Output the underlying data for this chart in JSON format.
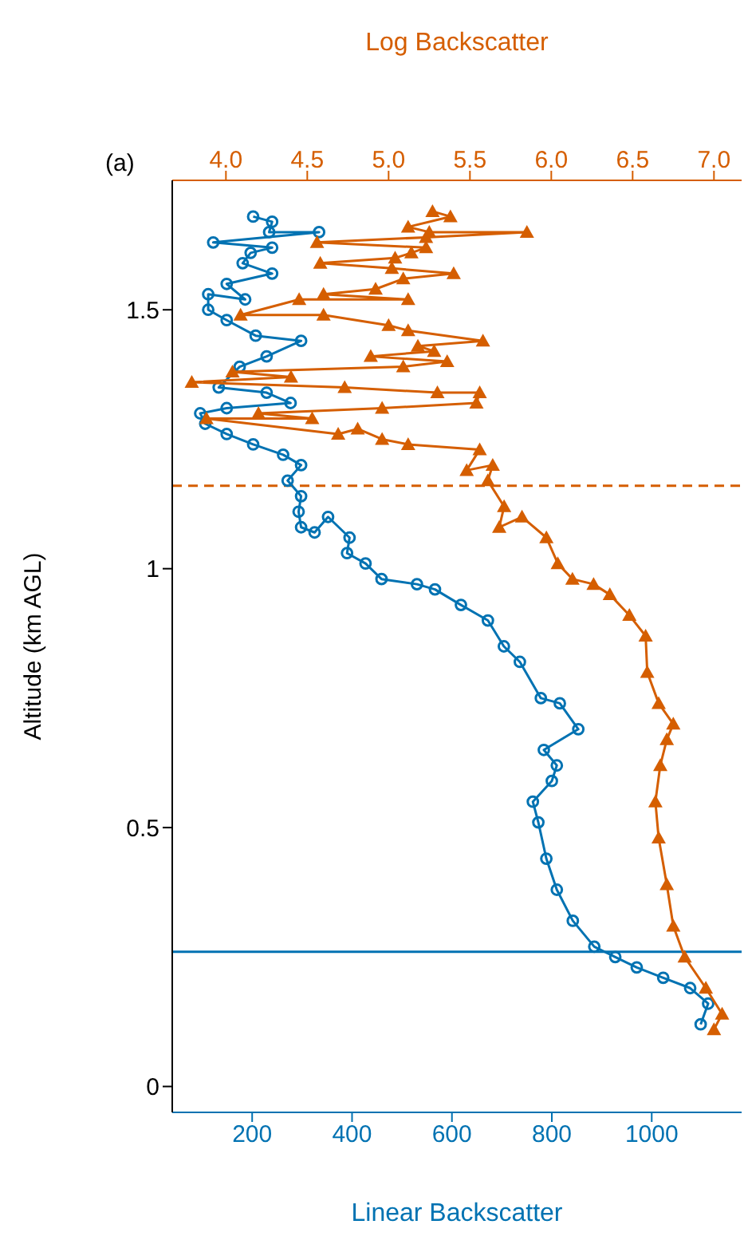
{
  "chart_data": {
    "type": "line",
    "title": "(a)",
    "xlabel": "Linear Backscatter",
    "x2label": "Log Backscatter",
    "ylabel": "Altitude (km AGL)",
    "xlim": [
      40,
      1180
    ],
    "xticks": [
      200,
      400,
      600,
      800,
      1000
    ],
    "x2lim": [
      3.67,
      7.17
    ],
    "x2ticks": [
      {
        "value": 4.0,
        "label": "4.0"
      },
      {
        "value": 4.5,
        "label": "4.5"
      },
      {
        "value": 5.0,
        "label": "5.0"
      },
      {
        "value": 5.5,
        "label": "5.5"
      },
      {
        "value": 6.0,
        "label": "6.0"
      },
      {
        "value": 6.5,
        "label": "6.5"
      },
      {
        "value": 7.0,
        "label": "7.0"
      }
    ],
    "ylim": [
      -0.05,
      1.75
    ],
    "yticks": [
      0,
      0.5,
      1,
      1.5
    ],
    "series": [
      {
        "color": "#0072b2",
        "marker": "circle",
        "x": [
          1098,
          1113,
          1077,
          1023,
          970,
          927,
          885,
          842,
          810,
          789,
          773,
          762,
          800,
          810,
          784,
          853,
          816,
          778,
          736,
          704,
          672,
          618,
          566,
          530,
          459,
          427,
          390,
          395,
          352,
          325,
          298,
          293,
          298,
          271,
          298,
          262,
          202,
          149,
          106,
          96,
          149,
          277,
          229,
          133,
          175,
          229,
          298,
          207,
          149,
          112,
          112,
          186,
          149,
          240,
          181,
          197,
          240,
          122,
          334,
          234,
          240,
          202
        ],
        "values": [
          0.12,
          0.16,
          0.19,
          0.21,
          0.23,
          0.25,
          0.27,
          0.32,
          0.38,
          0.44,
          0.51,
          0.55,
          0.59,
          0.62,
          0.65,
          0.69,
          0.74,
          0.75,
          0.82,
          0.85,
          0.9,
          0.93,
          0.96,
          0.97,
          0.98,
          1.01,
          1.03,
          1.06,
          1.1,
          1.07,
          1.08,
          1.11,
          1.14,
          1.17,
          1.2,
          1.22,
          1.24,
          1.26,
          1.28,
          1.3,
          1.31,
          1.32,
          1.34,
          1.35,
          1.39,
          1.41,
          1.44,
          1.45,
          1.48,
          1.5,
          1.53,
          1.52,
          1.55,
          1.57,
          1.59,
          1.61,
          1.62,
          1.63,
          1.65,
          1.65,
          1.67,
          1.68
        ]
      },
      {
        "color": "#d55e00",
        "marker": "triangle",
        "axis": "x2",
        "x": [
          7.0,
          7.05,
          6.95,
          6.82,
          6.75,
          6.71,
          6.66,
          6.64,
          6.67,
          6.71,
          6.75,
          6.66,
          6.59,
          6.58,
          6.48,
          6.36,
          6.26,
          6.13,
          6.04,
          5.97,
          5.82,
          5.68,
          5.71,
          5.61,
          5.64,
          5.48,
          5.56,
          5.12,
          4.96,
          4.81,
          4.69,
          3.88,
          4.53,
          4.2,
          4.96,
          5.54,
          5.56,
          5.3,
          4.73,
          3.79,
          4.4,
          4.04,
          5.09,
          5.36,
          4.89,
          5.28,
          5.18,
          5.58,
          5.12,
          5.0,
          4.6,
          4.09,
          4.45,
          5.12,
          4.6,
          4.92,
          5.09,
          5.4,
          5.02,
          4.58,
          5.04,
          5.14,
          5.23,
          4.56,
          5.23,
          5.85,
          5.25,
          5.12,
          5.38,
          5.27
        ],
        "values": [
          0.11,
          0.14,
          0.19,
          0.25,
          0.31,
          0.39,
          0.48,
          0.55,
          0.62,
          0.67,
          0.7,
          0.74,
          0.8,
          0.87,
          0.91,
          0.95,
          0.97,
          0.98,
          1.01,
          1.06,
          1.1,
          1.08,
          1.12,
          1.17,
          1.2,
          1.19,
          1.23,
          1.24,
          1.25,
          1.27,
          1.26,
          1.29,
          1.29,
          1.3,
          1.31,
          1.32,
          1.34,
          1.34,
          1.35,
          1.36,
          1.37,
          1.38,
          1.39,
          1.4,
          1.41,
          1.42,
          1.43,
          1.44,
          1.46,
          1.47,
          1.49,
          1.49,
          1.52,
          1.52,
          1.53,
          1.54,
          1.56,
          1.57,
          1.58,
          1.59,
          1.6,
          1.61,
          1.62,
          1.63,
          1.64,
          1.65,
          1.65,
          1.66,
          1.68,
          1.69
        ]
      }
    ],
    "ref_lines": [
      {
        "axis": "y",
        "value": 0.26,
        "color": "#0072b2",
        "line_style": "solid"
      },
      {
        "axis": "y",
        "value": 1.16,
        "color": "#d55e00",
        "line_style": "dashed"
      }
    ]
  }
}
